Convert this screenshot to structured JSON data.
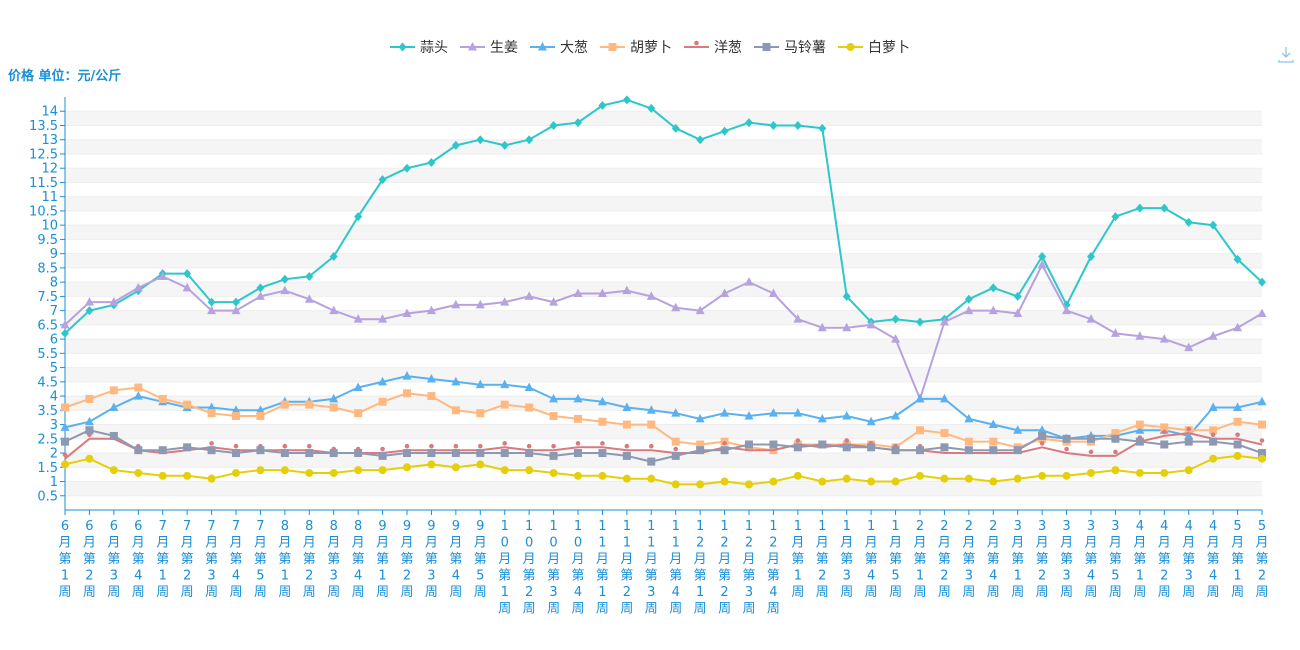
{
  "chart_data": {
    "type": "line",
    "ylabel": "价格 单位：元/公斤",
    "ylim": [
      0,
      14.5
    ],
    "yticks": [
      0.5,
      1,
      1.5,
      2,
      2.5,
      3,
      3.5,
      4,
      4.5,
      5,
      5.5,
      6,
      6.5,
      7,
      7.5,
      8,
      8.5,
      9,
      9.5,
      10,
      10.5,
      11,
      11.5,
      12,
      12.5,
      13,
      13.5,
      14
    ],
    "grid": "horizontal-bands",
    "legend_position": "top-center",
    "categories": [
      "6月第1周",
      "6月第2周",
      "6月第3周",
      "6月第4周",
      "7月第1周",
      "7月第2周",
      "7月第3周",
      "7月第4周",
      "7月第5周",
      "8月第1周",
      "8月第2周",
      "8月第3周",
      "8月第4周",
      "9月第1周",
      "9月第2周",
      "9月第3周",
      "9月第4周",
      "9月第5周",
      "10月第1周",
      "10月第2周",
      "10月第3周",
      "10月第4周",
      "11月第1周",
      "11月第2周",
      "11月第3周",
      "11月第4周",
      "12月第1周",
      "12月第2周",
      "12月第3周",
      "12月第4周",
      "1月第1周",
      "1月第2周",
      "1月第3周",
      "1月第4周",
      "1月第5周",
      "2月第1周",
      "2月第2周",
      "2月第3周",
      "2月第4周",
      "3月第1周",
      "3月第2周",
      "3月第3周",
      "3月第4周",
      "3月第5周",
      "4月第1周",
      "4月第2周",
      "4月第3周",
      "4月第4周",
      "5月第1周",
      "5月第2周"
    ],
    "series": [
      {
        "name": "蒜头",
        "color": "#2ec7c9",
        "marker": "diamond",
        "values": [
          6.2,
          7.0,
          7.2,
          7.7,
          8.3,
          8.3,
          7.3,
          7.3,
          7.8,
          8.1,
          8.2,
          8.9,
          10.3,
          11.6,
          12.0,
          12.2,
          12.8,
          13.0,
          12.8,
          13.0,
          13.5,
          13.6,
          14.2,
          14.4,
          14.1,
          13.4,
          13.0,
          13.3,
          13.6,
          13.5,
          13.5,
          13.4,
          7.5,
          6.6,
          6.7,
          6.6,
          6.7,
          7.4,
          7.8,
          7.5,
          8.9,
          7.2,
          8.9,
          10.3,
          10.6,
          10.6,
          10.1,
          10.0,
          8.8,
          8.0
        ]
      },
      {
        "name": "生姜",
        "color": "#b6a2de",
        "marker": "triangle",
        "values": [
          6.5,
          7.3,
          7.3,
          7.8,
          8.2,
          7.8,
          7.0,
          7.0,
          7.5,
          7.7,
          7.4,
          7.0,
          6.7,
          6.7,
          6.9,
          7.0,
          7.2,
          7.2,
          7.3,
          7.5,
          7.3,
          7.6,
          7.6,
          7.7,
          7.5,
          7.1,
          7.0,
          7.6,
          8.0,
          7.6,
          6.7,
          6.4,
          6.4,
          6.5,
          6.0,
          3.9,
          6.6,
          7.0,
          7.0,
          6.9,
          8.6,
          7.0,
          6.7,
          6.2,
          6.1,
          6.0,
          5.7,
          6.1,
          6.4,
          6.9
        ]
      },
      {
        "name": "大葱",
        "color": "#5ab1ef",
        "marker": "triangle",
        "values": [
          2.9,
          3.1,
          3.6,
          4.0,
          3.8,
          3.6,
          3.6,
          3.5,
          3.5,
          3.8,
          3.8,
          3.9,
          4.3,
          4.5,
          4.7,
          4.6,
          4.5,
          4.4,
          4.4,
          4.3,
          3.9,
          3.9,
          3.8,
          3.6,
          3.5,
          3.4,
          3.2,
          3.4,
          3.3,
          3.4,
          3.4,
          3.2,
          3.3,
          3.1,
          3.3,
          3.9,
          3.9,
          3.2,
          3.0,
          2.8,
          2.8,
          2.5,
          2.6,
          2.6,
          2.8,
          2.8,
          2.6,
          3.6,
          3.6,
          3.8
        ]
      },
      {
        "name": "胡萝卜",
        "color": "#ffb980",
        "marker": "square",
        "values": [
          3.6,
          3.9,
          4.2,
          4.3,
          3.9,
          3.7,
          3.4,
          3.3,
          3.3,
          3.7,
          3.7,
          3.6,
          3.4,
          3.8,
          4.1,
          4.0,
          3.5,
          3.4,
          3.7,
          3.6,
          3.3,
          3.2,
          3.1,
          3.0,
          3.0,
          2.4,
          2.3,
          2.4,
          2.2,
          2.1,
          2.3,
          2.3,
          2.3,
          2.3,
          2.2,
          2.8,
          2.7,
          2.4,
          2.4,
          2.2,
          2.5,
          2.4,
          2.4,
          2.7,
          3.0,
          2.9,
          2.8,
          2.8,
          3.1,
          3.0
        ]
      },
      {
        "name": "洋葱",
        "color": "#d87a80",
        "marker": "pin",
        "values": [
          1.8,
          2.5,
          2.5,
          2.1,
          2.0,
          2.1,
          2.2,
          2.1,
          2.1,
          2.1,
          2.1,
          2.0,
          2.0,
          2.0,
          2.1,
          2.1,
          2.1,
          2.1,
          2.2,
          2.1,
          2.1,
          2.2,
          2.2,
          2.1,
          2.1,
          2.0,
          2.0,
          2.2,
          2.1,
          2.1,
          2.3,
          2.2,
          2.3,
          2.2,
          2.1,
          2.1,
          2.0,
          2.0,
          2.0,
          2.0,
          2.2,
          2.0,
          1.9,
          1.9,
          2.4,
          2.6,
          2.7,
          2.5,
          2.5,
          2.3
        ]
      },
      {
        "name": "马铃薯",
        "color": "#8d98b3",
        "marker": "square",
        "values": [
          2.4,
          2.8,
          2.6,
          2.1,
          2.1,
          2.2,
          2.1,
          2.0,
          2.1,
          2.0,
          2.0,
          2.0,
          2.0,
          1.9,
          2.0,
          2.0,
          2.0,
          2.0,
          2.0,
          2.0,
          1.9,
          2.0,
          2.0,
          1.9,
          1.7,
          1.9,
          2.1,
          2.1,
          2.3,
          2.3,
          2.2,
          2.3,
          2.2,
          2.2,
          2.1,
          2.1,
          2.2,
          2.1,
          2.1,
          2.1,
          2.6,
          2.5,
          2.5,
          2.5,
          2.4,
          2.3,
          2.4,
          2.4,
          2.3,
          2.0
        ]
      },
      {
        "name": "白萝卜",
        "color": "#e5cf0d",
        "marker": "circle",
        "values": [
          1.6,
          1.8,
          1.4,
          1.3,
          1.2,
          1.2,
          1.1,
          1.3,
          1.4,
          1.4,
          1.3,
          1.3,
          1.4,
          1.4,
          1.5,
          1.6,
          1.5,
          1.6,
          1.4,
          1.4,
          1.3,
          1.2,
          1.2,
          1.1,
          1.1,
          0.9,
          0.9,
          1.0,
          0.9,
          1.0,
          1.2,
          1.0,
          1.1,
          1.0,
          1.0,
          1.2,
          1.1,
          1.1,
          1.0,
          1.1,
          1.2,
          1.2,
          1.3,
          1.4,
          1.3,
          1.3,
          1.4,
          1.8,
          1.9,
          1.8
        ]
      }
    ]
  }
}
